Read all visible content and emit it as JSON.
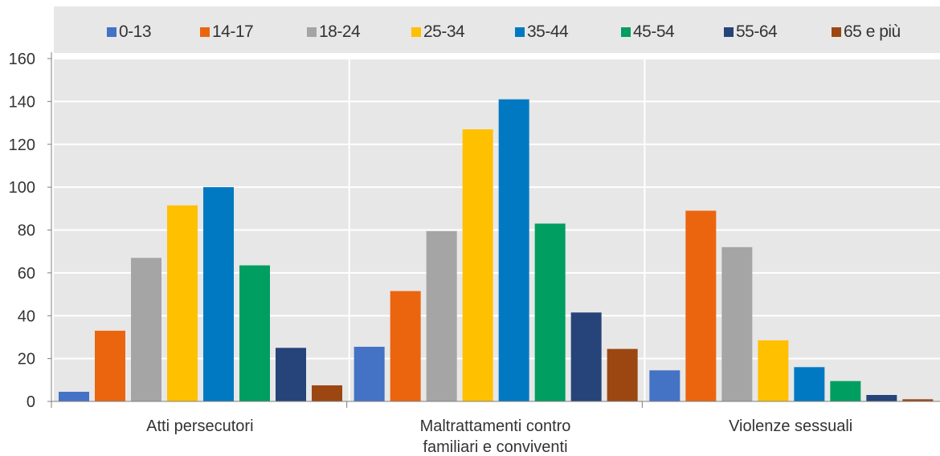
{
  "chart_data": {
    "type": "bar",
    "categories": [
      [
        "Atti persecutori"
      ],
      [
        "Maltrattamenti contro",
        "familiari e conviventi"
      ],
      [
        "Violenze sessuali"
      ]
    ],
    "series": [
      {
        "name": "0-13",
        "color": "#4472c4",
        "values": [
          4.5,
          25.5,
          14.5
        ]
      },
      {
        "name": "14-17",
        "color": "#eb650f",
        "values": [
          33,
          51.5,
          89
        ]
      },
      {
        "name": "18-24",
        "color": "#a5a5a5",
        "values": [
          67,
          79.5,
          72
        ]
      },
      {
        "name": "25-34",
        "color": "#ffc000",
        "values": [
          91.5,
          127,
          28.5
        ]
      },
      {
        "name": "35-44",
        "color": "#0079c2",
        "values": [
          100,
          141,
          16
        ]
      },
      {
        "name": "45-54",
        "color": "#009e60",
        "values": [
          63.5,
          83,
          9.5
        ]
      },
      {
        "name": "55-64",
        "color": "#26437a",
        "values": [
          25,
          41.5,
          3
        ]
      },
      {
        "name": "65 e più",
        "color": "#9c4711",
        "values": [
          7.5,
          24.5,
          1
        ]
      }
    ],
    "ylim": [
      0,
      160
    ],
    "yticks": [
      0,
      20,
      40,
      60,
      80,
      100,
      120,
      140,
      160
    ],
    "grid": true,
    "legend": "top",
    "title": "",
    "xlabel": "",
    "ylabel": ""
  }
}
